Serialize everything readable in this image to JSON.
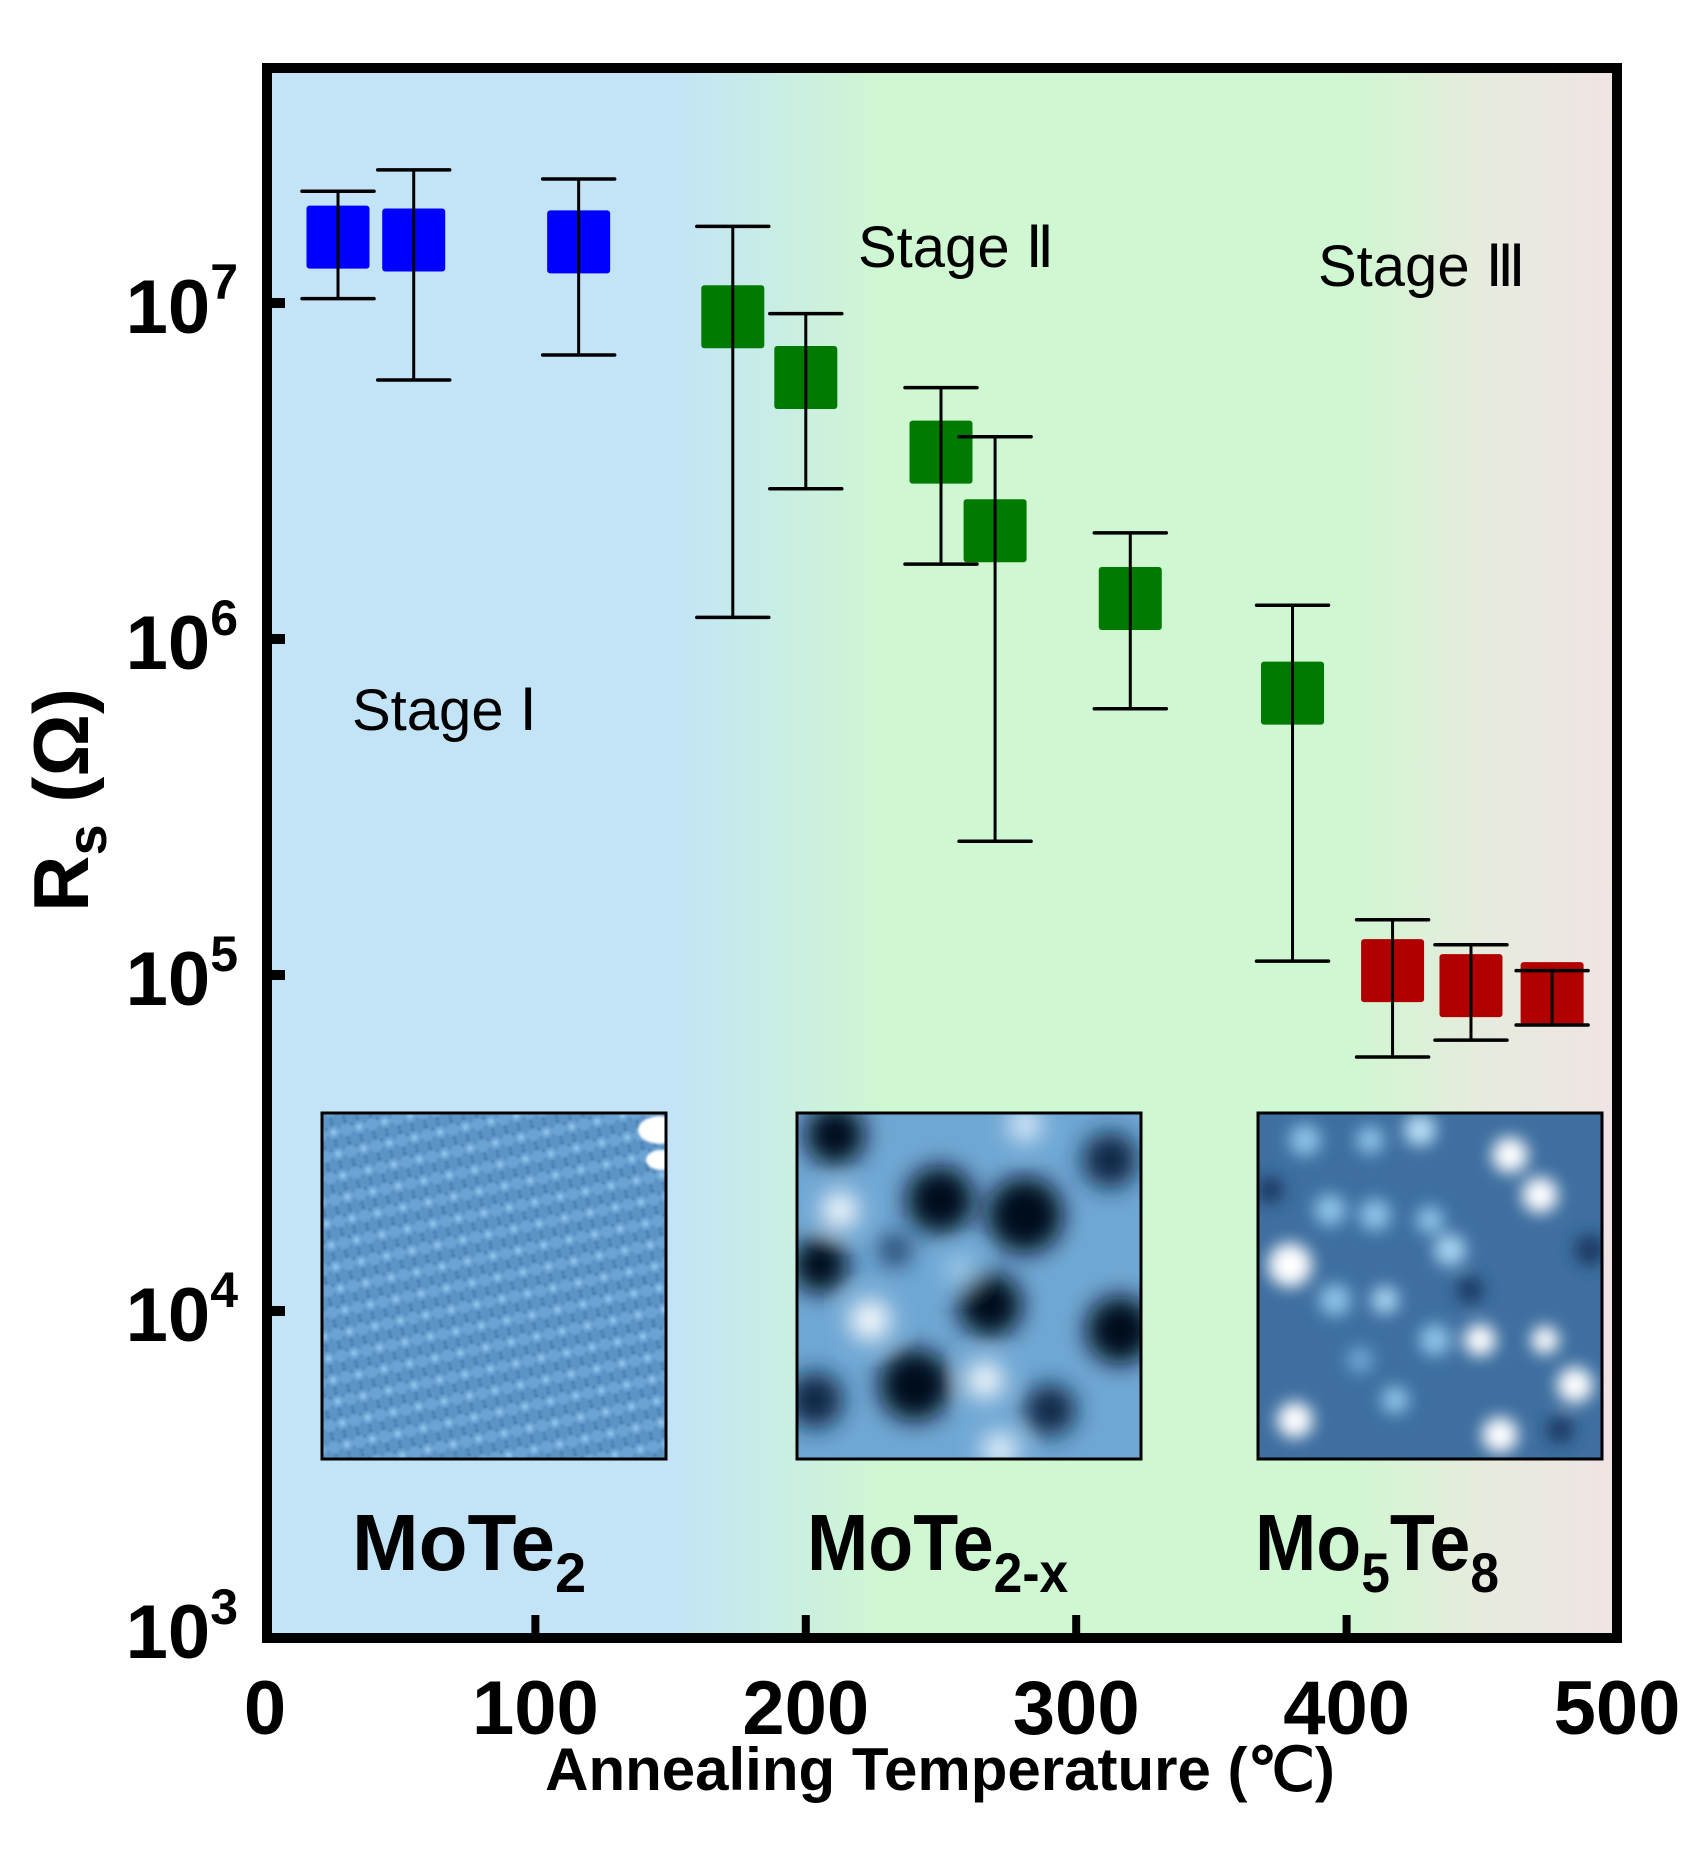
{
  "chart_data": {
    "type": "scatter",
    "title": "",
    "xlabel": "Annealing Temperature (℃)",
    "ylabel_main": "R",
    "ylabel_sub": "s",
    "ylabel_unit": " (Ω)",
    "xlim": [
      0,
      500
    ],
    "ylim": [
      1000,
      50000000
    ],
    "yscale": "log",
    "grid": false,
    "legend": "none",
    "x_ticks": [
      {
        "value": 0,
        "label": "0"
      },
      {
        "value": 100,
        "label": "100"
      },
      {
        "value": 200,
        "label": "200"
      },
      {
        "value": 300,
        "label": "300"
      },
      {
        "value": 400,
        "label": "400"
      },
      {
        "value": 500,
        "label": "500"
      }
    ],
    "y_ticks": [
      {
        "value": 1000,
        "base": "10",
        "exp": "3"
      },
      {
        "value": 10000,
        "base": "10",
        "exp": "4"
      },
      {
        "value": 100000,
        "base": "10",
        "exp": "5"
      },
      {
        "value": 1000000,
        "base": "10",
        "exp": "6"
      },
      {
        "value": 10000000,
        "base": "10",
        "exp": "7"
      }
    ],
    "background_regions": [
      {
        "name": "stage-1",
        "color": "#c3e4f7"
      },
      {
        "name": "stage-2",
        "color": "#cff7d1"
      },
      {
        "name": "stage-3",
        "color": "#efe4e4"
      }
    ],
    "series": [
      {
        "name": "Stage I (MoTe2)",
        "color": "#0000ff",
        "points": [
          {
            "x": 27,
            "y": 15700000,
            "err_high": 21500000,
            "err_low": 10300000
          },
          {
            "x": 55,
            "y": 15400000,
            "err_high": 24900000,
            "err_low": 5900000
          },
          {
            "x": 116,
            "y": 15200000,
            "err_high": 23400000,
            "err_low": 7000000
          }
        ]
      },
      {
        "name": "Stage II (MoTe2-x)",
        "color": "#007a00",
        "points": [
          {
            "x": 173,
            "y": 9100000,
            "err_high": 16900000,
            "err_low": 1160000
          },
          {
            "x": 200,
            "y": 6000000,
            "err_high": 9300000,
            "err_low": 2800000
          },
          {
            "x": 250,
            "y": 3600000,
            "err_high": 5600000,
            "err_low": 1670000
          },
          {
            "x": 270,
            "y": 2100000,
            "err_high": 4000000,
            "err_low": 250000
          },
          {
            "x": 320,
            "y": 1320000,
            "err_high": 2070000,
            "err_low": 620000
          },
          {
            "x": 380,
            "y": 690000,
            "err_high": 1260000,
            "err_low": 110000
          }
        ]
      },
      {
        "name": "Stage III (Mo5Te8)",
        "color": "#b00000",
        "points": [
          {
            "x": 417,
            "y": 103000,
            "err_high": 146000,
            "err_low": 57000
          },
          {
            "x": 446,
            "y": 93000,
            "err_high": 123000,
            "err_low": 64000
          },
          {
            "x": 476,
            "y": 88000,
            "err_high": 103000,
            "err_low": 71000
          }
        ]
      }
    ],
    "annotations": [
      {
        "id": "stage1",
        "text": "Stage Ⅰ"
      },
      {
        "id": "stage2",
        "text": "Stage Ⅱ"
      },
      {
        "id": "stage3",
        "text": "Stage Ⅲ"
      }
    ],
    "insets": [
      {
        "id": "inset1",
        "description": "STM image: hexagonal atomic lattice",
        "label_main": "MoTe",
        "label_sub": "2"
      },
      {
        "id": "inset2",
        "description": "STM image: disordered triangular network",
        "label_main": "MoTe",
        "label_sub": "2-x"
      },
      {
        "id": "inset3",
        "description": "STM image: bright spots superstructure",
        "label_main": "Mo",
        "label_sub1": "5",
        "label_mid": "Te",
        "label_sub2": "8"
      }
    ]
  }
}
